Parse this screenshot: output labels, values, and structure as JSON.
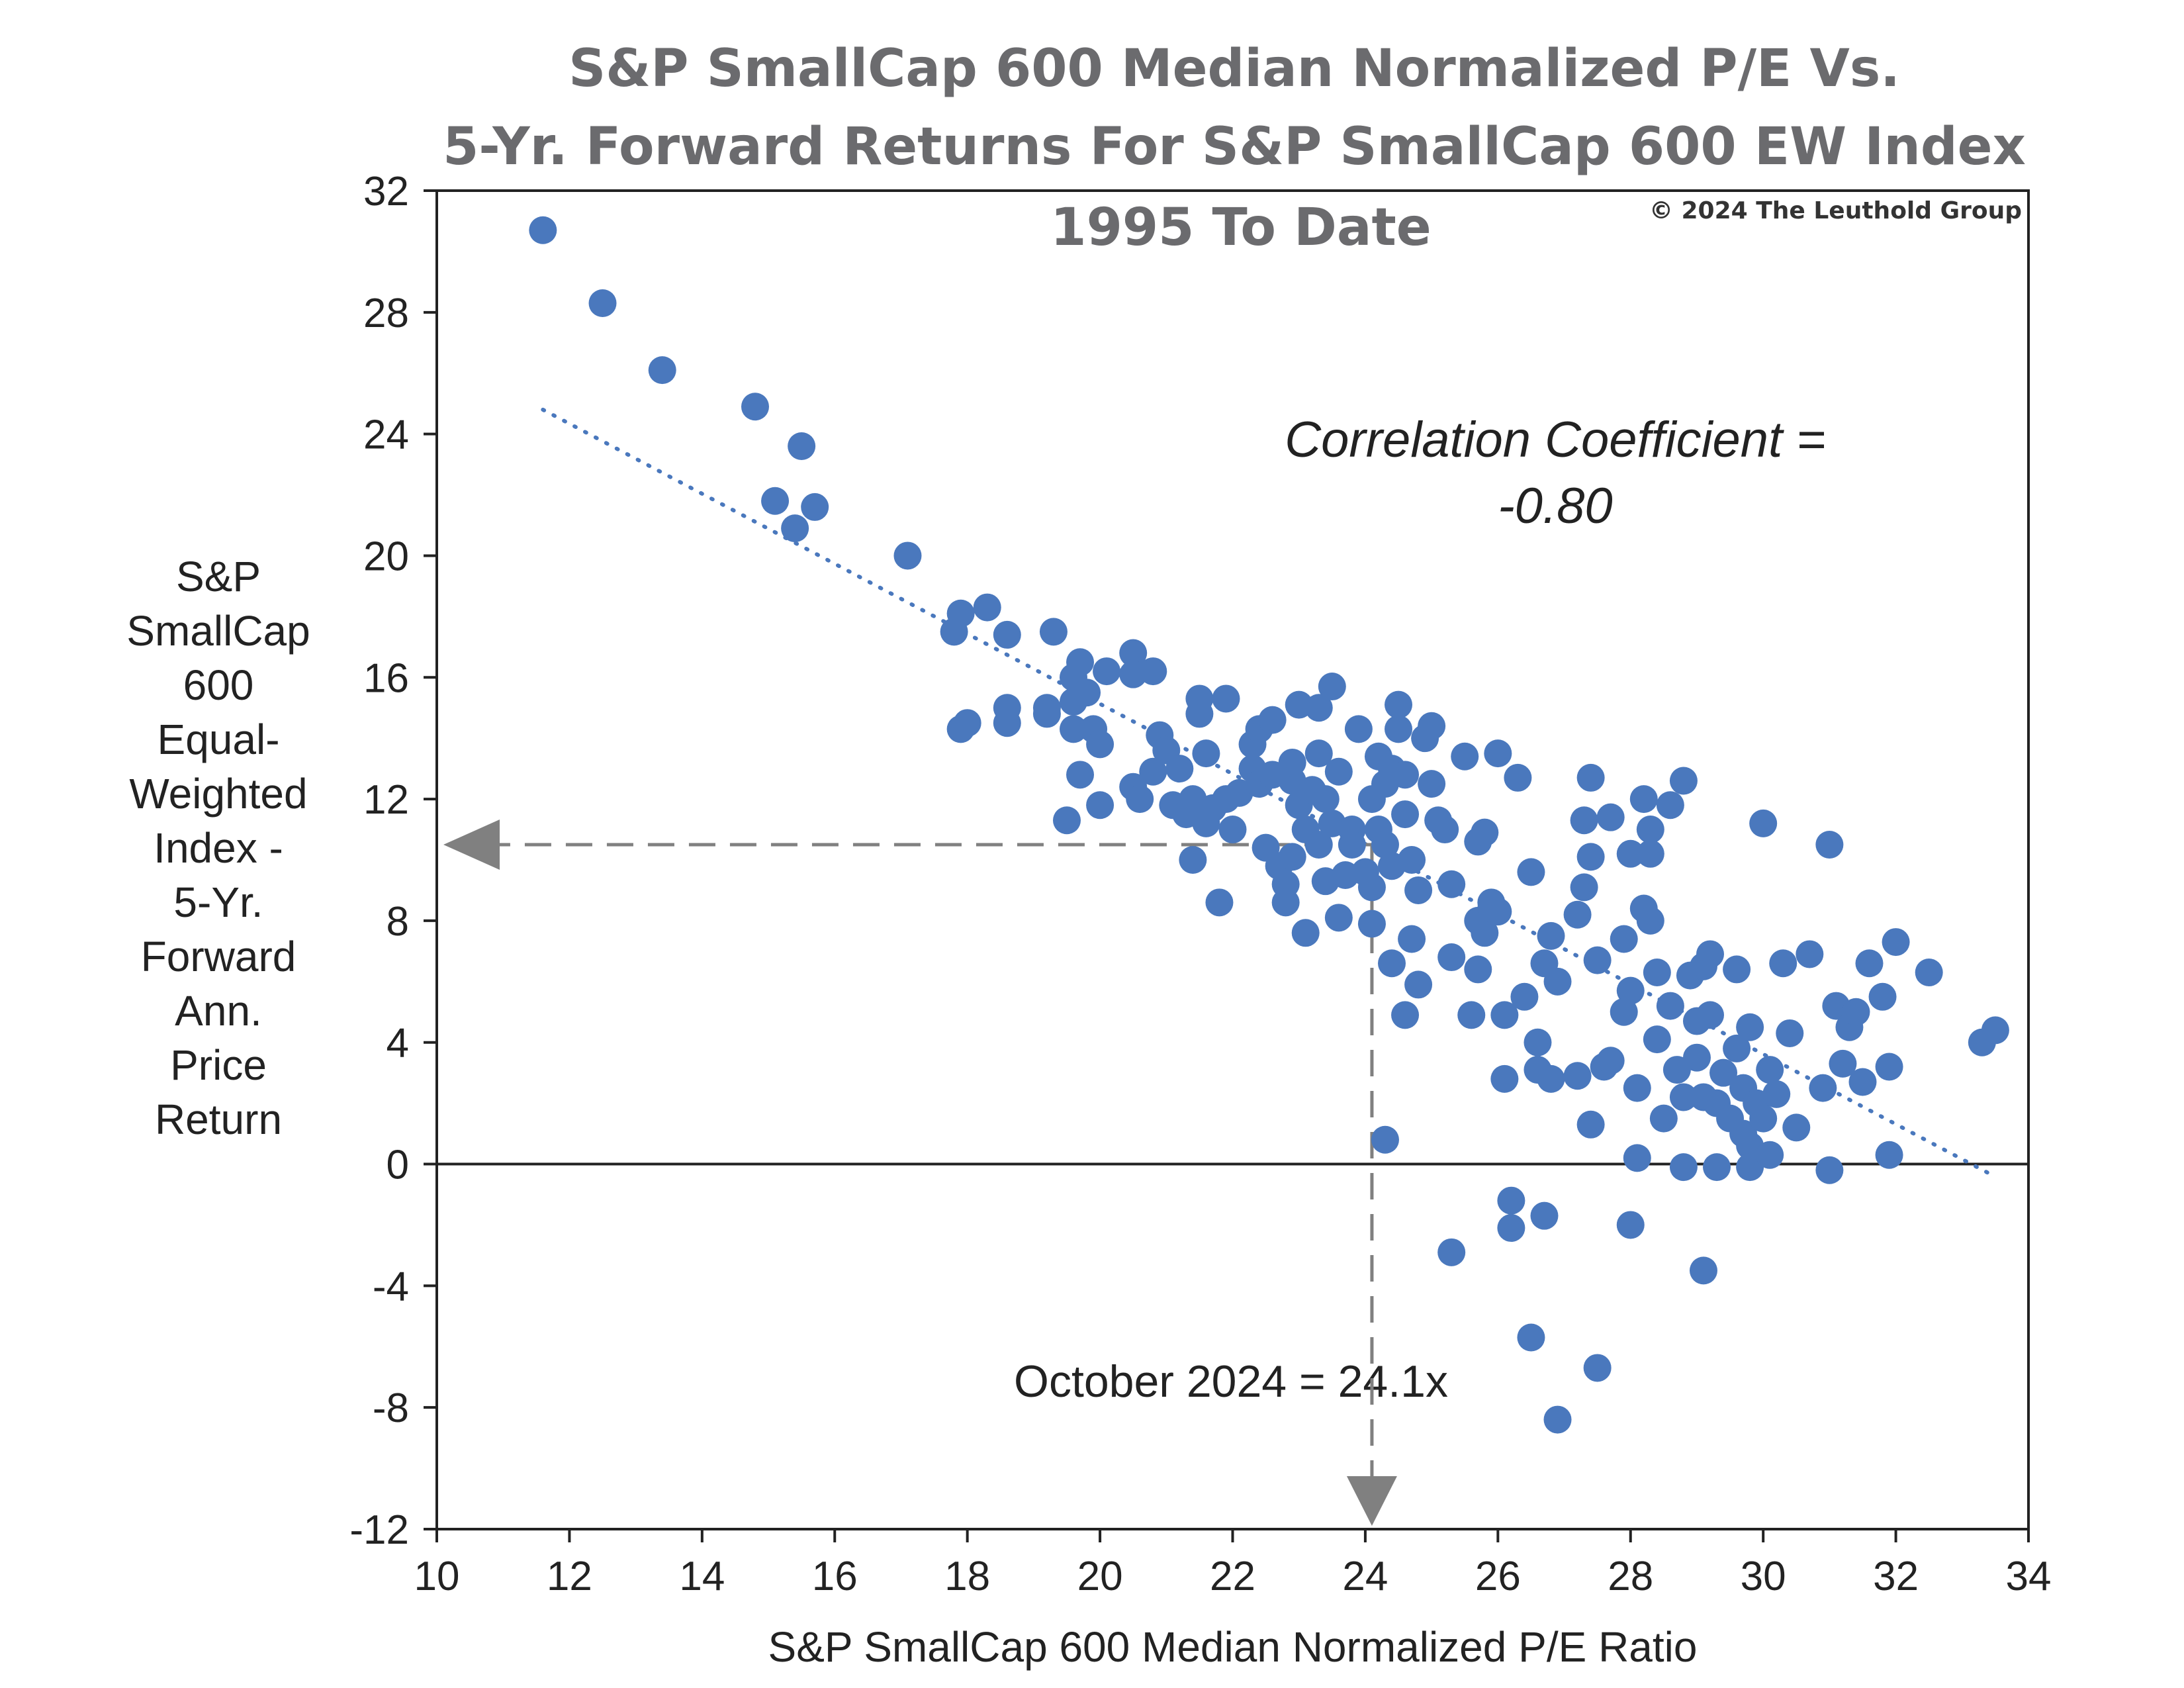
{
  "title": {
    "line1": "S&P SmallCap 600 Median Normalized P/E Vs.",
    "line2": "5-Yr. Forward Returns For S&P SmallCap 600 EW Index",
    "line3": "1995 To Date"
  },
  "copyright": "© 2024 The Leuthold Group",
  "correlation": {
    "line1": "Correlation Coefficient =",
    "line2": "-0.80"
  },
  "annotation": "October 2024 = 24.1x",
  "ylabel_lines": [
    "S&P",
    "SmallCap",
    "600",
    "Equal-",
    "Weighted",
    "Index -",
    "5-Yr.",
    "Forward",
    "Ann.",
    "Price",
    "Return"
  ],
  "colors": {
    "points": "#4a78bd",
    "trend": "#4a78bd",
    "arrow": "#808080",
    "title": "#6b6b6e"
  },
  "chart_data": {
    "type": "scatter",
    "title": "S&P SmallCap 600 Median Normalized P/E Vs. 5-Yr. Forward Returns For S&P SmallCap 600 EW Index 1995 To Date",
    "xlabel": "S&P SmallCap 600 Median Normalized P/E Ratio",
    "ylabel": "S&P SmallCap 600 Equal-Weighted Index - 5-Yr. Forward Ann. Price Return",
    "xlim": [
      10,
      34
    ],
    "ylim": [
      -12,
      32
    ],
    "xticks": [
      10,
      12,
      14,
      16,
      18,
      20,
      22,
      24,
      26,
      28,
      30,
      32,
      34
    ],
    "yticks": [
      -12,
      -8,
      -4,
      0,
      4,
      8,
      12,
      16,
      20,
      24,
      28,
      32
    ],
    "xtick_labels": [
      "10",
      "12",
      "14",
      "16",
      "18",
      "20",
      "22",
      "24",
      "26",
      "28",
      "30",
      "32",
      "34"
    ],
    "ytick_labels": [
      "-12",
      "-8",
      "-4",
      "0",
      "4",
      "8",
      "12",
      "16",
      "20",
      "24",
      "28",
      "32"
    ],
    "trendline": {
      "style": "dotted",
      "x": [
        11.6,
        33.4
      ],
      "y": [
        24.8,
        -0.3
      ]
    },
    "marker": {
      "x": 24.1,
      "y": 10.5,
      "label": "October 2024 = 24.1x"
    },
    "points": [
      [
        11.6,
        30.7
      ],
      [
        12.5,
        28.3
      ],
      [
        13.4,
        26.1
      ],
      [
        14.8,
        24.9
      ],
      [
        15.5,
        23.6
      ],
      [
        15.1,
        21.8
      ],
      [
        15.4,
        20.9
      ],
      [
        15.7,
        21.6
      ],
      [
        17.1,
        20.0
      ],
      [
        17.8,
        17.5
      ],
      [
        17.9,
        18.1
      ],
      [
        18.3,
        18.3
      ],
      [
        18.6,
        17.4
      ],
      [
        19.3,
        17.5
      ],
      [
        17.9,
        14.3
      ],
      [
        18.0,
        14.5
      ],
      [
        18.6,
        14.5
      ],
      [
        18.6,
        15.0
      ],
      [
        19.2,
        15.0
      ],
      [
        19.2,
        14.8
      ],
      [
        19.5,
        11.3
      ],
      [
        19.6,
        15.2
      ],
      [
        19.6,
        14.3
      ],
      [
        19.6,
        16.0
      ],
      [
        19.7,
        16.5
      ],
      [
        19.7,
        12.8
      ],
      [
        19.8,
        15.5
      ],
      [
        19.9,
        14.3
      ],
      [
        20.0,
        13.8
      ],
      [
        20.0,
        11.8
      ],
      [
        20.1,
        16.2
      ],
      [
        20.5,
        16.8
      ],
      [
        20.5,
        16.1
      ],
      [
        20.8,
        16.2
      ],
      [
        20.5,
        12.4
      ],
      [
        20.6,
        12.0
      ],
      [
        20.8,
        12.9
      ],
      [
        20.9,
        14.1
      ],
      [
        21.0,
        13.6
      ],
      [
        21.1,
        11.8
      ],
      [
        21.2,
        13.0
      ],
      [
        21.3,
        11.5
      ],
      [
        21.4,
        10.0
      ],
      [
        21.4,
        12.0
      ],
      [
        21.5,
        14.8
      ],
      [
        21.5,
        15.3
      ],
      [
        21.6,
        11.2
      ],
      [
        21.6,
        13.5
      ],
      [
        21.7,
        11.7
      ],
      [
        21.8,
        8.6
      ],
      [
        21.9,
        15.3
      ],
      [
        21.9,
        12.0
      ],
      [
        22.0,
        11.0
      ],
      [
        22.1,
        12.2
      ],
      [
        22.3,
        13.0
      ],
      [
        22.3,
        13.8
      ],
      [
        22.4,
        14.3
      ],
      [
        22.4,
        12.5
      ],
      [
        22.5,
        10.4
      ],
      [
        22.6,
        14.6
      ],
      [
        22.6,
        12.8
      ],
      [
        22.7,
        9.8
      ],
      [
        22.8,
        9.2
      ],
      [
        22.8,
        8.6
      ],
      [
        22.9,
        10.1
      ],
      [
        22.9,
        12.6
      ],
      [
        22.9,
        13.2
      ],
      [
        23.0,
        15.1
      ],
      [
        23.0,
        11.8
      ],
      [
        23.1,
        7.6
      ],
      [
        23.1,
        11.0
      ],
      [
        23.2,
        12.3
      ],
      [
        23.3,
        15.0
      ],
      [
        23.3,
        13.5
      ],
      [
        23.3,
        10.5
      ],
      [
        23.4,
        12.0
      ],
      [
        23.4,
        9.3
      ],
      [
        23.5,
        15.7
      ],
      [
        23.5,
        11.2
      ],
      [
        23.6,
        12.9
      ],
      [
        23.6,
        8.1
      ],
      [
        23.7,
        9.5
      ],
      [
        23.8,
        11.0
      ],
      [
        23.8,
        10.5
      ],
      [
        23.9,
        14.3
      ],
      [
        24.0,
        9.6
      ],
      [
        24.1,
        7.9
      ],
      [
        24.1,
        12.0
      ],
      [
        24.1,
        9.1
      ],
      [
        24.2,
        13.4
      ],
      [
        24.2,
        11.0
      ],
      [
        24.3,
        10.5
      ],
      [
        24.3,
        12.5
      ],
      [
        24.4,
        6.6
      ],
      [
        24.4,
        9.8
      ],
      [
        24.4,
        13.0
      ],
      [
        24.5,
        15.1
      ],
      [
        24.5,
        14.3
      ],
      [
        24.6,
        11.5
      ],
      [
        24.6,
        12.8
      ],
      [
        24.6,
        4.9
      ],
      [
        24.7,
        10.0
      ],
      [
        24.7,
        7.4
      ],
      [
        24.8,
        5.9
      ],
      [
        24.8,
        9.0
      ],
      [
        24.9,
        14.0
      ],
      [
        25.0,
        12.5
      ],
      [
        25.0,
        14.4
      ],
      [
        25.1,
        11.3
      ],
      [
        25.2,
        11.0
      ],
      [
        25.3,
        9.2
      ],
      [
        25.3,
        6.8
      ],
      [
        25.5,
        13.4
      ],
      [
        25.6,
        4.9
      ],
      [
        25.7,
        10.6
      ],
      [
        25.7,
        8.0
      ],
      [
        25.7,
        6.4
      ],
      [
        25.8,
        10.9
      ],
      [
        25.8,
        7.6
      ],
      [
        25.9,
        8.4
      ],
      [
        25.9,
        8.6
      ],
      [
        26.0,
        13.5
      ],
      [
        26.0,
        8.3
      ],
      [
        26.1,
        4.9
      ],
      [
        26.1,
        2.8
      ],
      [
        26.3,
        12.7
      ],
      [
        26.4,
        5.5
      ],
      [
        26.5,
        9.6
      ],
      [
        26.6,
        4.0
      ],
      [
        26.6,
        3.1
      ],
      [
        26.7,
        6.6
      ],
      [
        26.8,
        7.5
      ],
      [
        26.8,
        2.8
      ],
      [
        26.9,
        6.0
      ],
      [
        27.2,
        8.2
      ],
      [
        27.2,
        2.9
      ],
      [
        27.3,
        9.1
      ],
      [
        27.3,
        11.3
      ],
      [
        27.4,
        10.1
      ],
      [
        27.4,
        12.7
      ],
      [
        27.4,
        1.3
      ],
      [
        27.5,
        6.7
      ],
      [
        27.6,
        3.2
      ],
      [
        27.7,
        11.4
      ],
      [
        27.7,
        3.4
      ],
      [
        27.9,
        7.4
      ],
      [
        27.9,
        5.0
      ],
      [
        28.0,
        10.2
      ],
      [
        28.0,
        5.7
      ],
      [
        28.1,
        2.5
      ],
      [
        28.1,
        0.2
      ],
      [
        28.2,
        12.0
      ],
      [
        28.2,
        8.4
      ],
      [
        28.3,
        10.2
      ],
      [
        28.3,
        11.0
      ],
      [
        28.3,
        8.0
      ],
      [
        28.4,
        6.3
      ],
      [
        28.4,
        4.1
      ],
      [
        28.5,
        1.5
      ],
      [
        28.6,
        11.8
      ],
      [
        28.6,
        5.2
      ],
      [
        28.7,
        3.1
      ],
      [
        28.8,
        12.6
      ],
      [
        28.8,
        2.2
      ],
      [
        28.9,
        6.2
      ],
      [
        29.0,
        4.7
      ],
      [
        29.0,
        3.5
      ],
      [
        29.1,
        2.2
      ],
      [
        29.1,
        6.5
      ],
      [
        29.2,
        6.9
      ],
      [
        29.2,
        4.9
      ],
      [
        29.3,
        2.0
      ],
      [
        29.4,
        3.0
      ],
      [
        29.5,
        1.5
      ],
      [
        29.6,
        6.4
      ],
      [
        29.6,
        3.8
      ],
      [
        29.7,
        1.0
      ],
      [
        29.7,
        2.5
      ],
      [
        29.8,
        4.5
      ],
      [
        29.8,
        0.6
      ],
      [
        29.9,
        2.0
      ],
      [
        30.0,
        11.2
      ],
      [
        30.0,
        1.5
      ],
      [
        30.1,
        3.1
      ],
      [
        30.2,
        2.3
      ],
      [
        30.3,
        6.6
      ],
      [
        30.4,
        4.3
      ],
      [
        30.5,
        1.2
      ],
      [
        30.7,
        6.9
      ],
      [
        30.9,
        2.5
      ],
      [
        31.0,
        10.5
      ],
      [
        31.1,
        5.2
      ],
      [
        31.2,
        3.3
      ],
      [
        31.3,
        4.5
      ],
      [
        31.4,
        5.0
      ],
      [
        31.5,
        2.7
      ],
      [
        31.6,
        6.6
      ],
      [
        31.8,
        5.5
      ],
      [
        31.9,
        3.2
      ],
      [
        32.0,
        7.3
      ],
      [
        32.5,
        6.3
      ],
      [
        33.3,
        4.0
      ],
      [
        33.5,
        4.4
      ],
      [
        24.3,
        0.8
      ],
      [
        28.8,
        -0.1
      ],
      [
        29.3,
        -0.1
      ],
      [
        29.8,
        -0.1
      ],
      [
        30.1,
        0.3
      ],
      [
        31.0,
        -0.2
      ],
      [
        31.9,
        0.3
      ],
      [
        26.2,
        -1.2
      ],
      [
        26.7,
        -1.7
      ],
      [
        26.2,
        -2.1
      ],
      [
        25.3,
        -2.9
      ],
      [
        28.0,
        -2.0
      ],
      [
        29.1,
        -3.5
      ],
      [
        26.5,
        -5.7
      ],
      [
        27.5,
        -6.7
      ],
      [
        26.9,
        -8.4
      ]
    ]
  }
}
